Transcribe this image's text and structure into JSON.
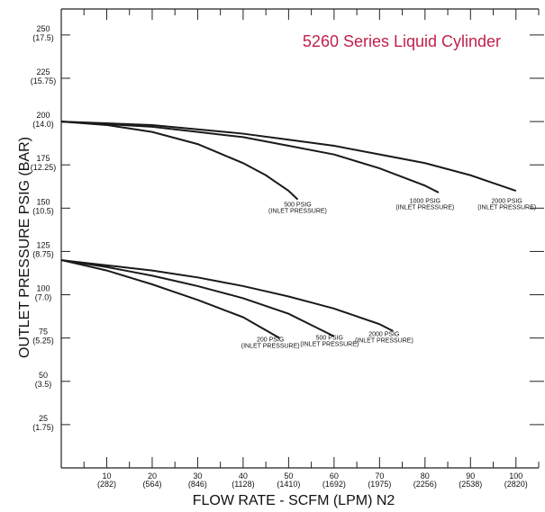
{
  "chart_data": {
    "type": "line",
    "title": "5260 Series Liquid Cylinder",
    "xlabel": "FLOW RATE - SCFM (LPM) N2",
    "ylabel": "OUTLET PRESSURE PSIG (BAR)",
    "xlim": [
      0,
      105
    ],
    "ylim": [
      0,
      265
    ],
    "x_ticks": [
      {
        "value": 10,
        "label": "10",
        "sub": "(282)"
      },
      {
        "value": 20,
        "label": "20",
        "sub": "(564)"
      },
      {
        "value": 30,
        "label": "30",
        "sub": "(846)"
      },
      {
        "value": 40,
        "label": "40",
        "sub": "(1128)"
      },
      {
        "value": 50,
        "label": "50",
        "sub": "(1410)"
      },
      {
        "value": 60,
        "label": "60",
        "sub": "(1692)"
      },
      {
        "value": 70,
        "label": "70",
        "sub": "(1975)"
      },
      {
        "value": 80,
        "label": "80",
        "sub": "(2256)"
      },
      {
        "value": 90,
        "label": "90",
        "sub": "(2538)"
      },
      {
        "value": 100,
        "label": "100",
        "sub": "(2820)"
      }
    ],
    "y_ticks": [
      {
        "value": 25,
        "label": "25",
        "sub": "(1.75)"
      },
      {
        "value": 50,
        "label": "50",
        "sub": "(3.5)"
      },
      {
        "value": 75,
        "label": "75",
        "sub": "(5.25)"
      },
      {
        "value": 100,
        "label": "100",
        "sub": "(7.0)"
      },
      {
        "value": 125,
        "label": "125",
        "sub": "(8.75)"
      },
      {
        "value": 150,
        "label": "150",
        "sub": "(10.5)"
      },
      {
        "value": 175,
        "label": "175",
        "sub": "(12.25)"
      },
      {
        "value": 200,
        "label": "200",
        "sub": "(14.0)"
      },
      {
        "value": 225,
        "label": "225",
        "sub": "(15.75)"
      },
      {
        "value": 250,
        "label": "250",
        "sub": "(17.5)"
      }
    ],
    "series": [
      {
        "key": "s200-500",
        "x": [
          0,
          10,
          20,
          30,
          40,
          45,
          50,
          52
        ],
        "y": [
          200,
          198,
          194,
          187,
          176,
          169,
          160,
          155
        ],
        "label": "500 PSIG",
        "sublabel": "(INLET PRESSURE)",
        "label_at": [
          52,
          151
        ]
      },
      {
        "key": "s200-1000",
        "x": [
          0,
          20,
          40,
          60,
          70,
          80,
          83
        ],
        "y": [
          200,
          197,
          191,
          181,
          173,
          163,
          159
        ],
        "label": "1000 PSIG",
        "sublabel": "(INLET PRESSURE)",
        "label_at": [
          80,
          153
        ]
      },
      {
        "key": "s200-2000",
        "x": [
          0,
          20,
          40,
          60,
          80,
          90,
          100
        ],
        "y": [
          200,
          198,
          193,
          186,
          176,
          169,
          160
        ],
        "label": "2000 PSIG",
        "sublabel": "(INLET PRESSURE)",
        "label_at": [
          98,
          153
        ]
      },
      {
        "key": "s120-200",
        "x": [
          0,
          10,
          20,
          30,
          40,
          48
        ],
        "y": [
          120,
          114,
          106,
          97,
          87,
          75
        ],
        "label": "200 PSIG",
        "sublabel": "(INLET PRESSURE)",
        "label_at": [
          46,
          73
        ]
      },
      {
        "key": "s120-500",
        "x": [
          0,
          10,
          20,
          30,
          40,
          50,
          60
        ],
        "y": [
          120,
          116,
          111,
          105,
          98,
          89,
          76
        ],
        "label": "500 PSIG",
        "sublabel": "(INLET PRESSURE)",
        "label_at": [
          59,
          74
        ]
      },
      {
        "key": "s120-2000",
        "x": [
          0,
          10,
          20,
          30,
          40,
          50,
          60,
          70,
          73
        ],
        "y": [
          120,
          117,
          114,
          110,
          105,
          99,
          92,
          83,
          79
        ],
        "label": "2000 PSIG",
        "sublabel": "(INLET PRESSURE)",
        "label_at": [
          71,
          76
        ]
      }
    ],
    "grid": false,
    "legend": "none"
  }
}
